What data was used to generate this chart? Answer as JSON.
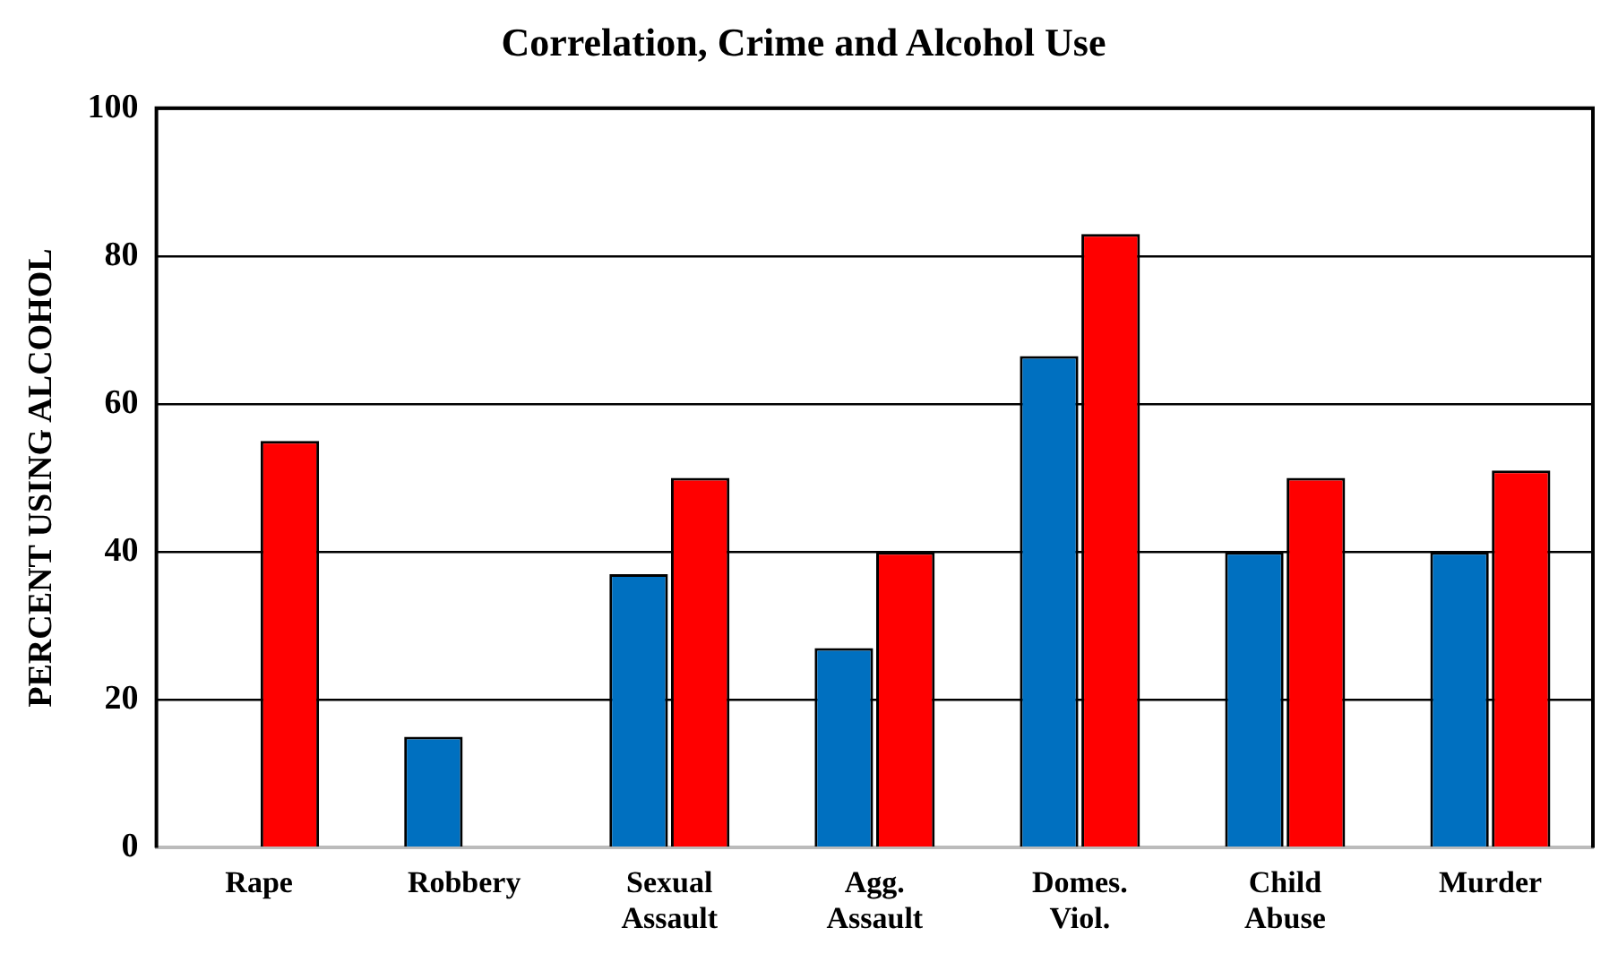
{
  "chart_data": {
    "type": "bar",
    "title": "Correlation, Crime and Alcohol Use",
    "ylabel": "PERCENT USING ALCOHOL",
    "categories": [
      "Rape",
      "Robbery",
      "Sexual Assault",
      "Agg. Assault",
      "Domes. Viol.",
      "Child Abuse",
      "Murder"
    ],
    "series": [
      {
        "color": "#0070c0",
        "values": [
          null,
          15,
          37,
          27,
          66.5,
          40,
          40
        ]
      },
      {
        "color": "#ff0000",
        "values": [
          55,
          null,
          50,
          40,
          83,
          50,
          51
        ]
      }
    ],
    "ylim": [
      0,
      100
    ],
    "yticks": [
      0,
      20,
      40,
      60,
      80,
      100
    ],
    "grid": "y",
    "legend": false
  }
}
